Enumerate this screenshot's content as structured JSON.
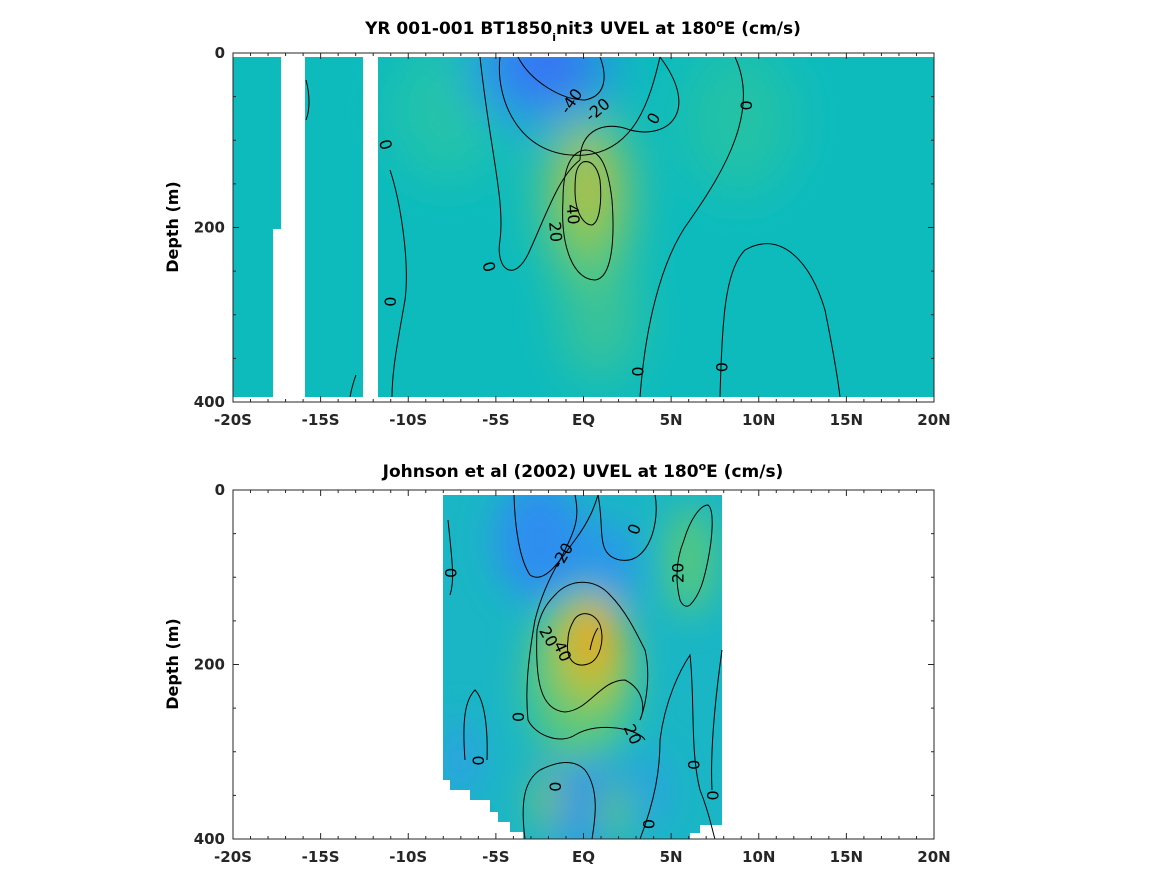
{
  "chart_data": [
    {
      "type": "heatmap",
      "title_pre": "YR 001-001 BT1850",
      "title_sub": "i",
      "title_mid": "nit3 UVEL at 180",
      "title_sup": "o",
      "title_post": "E (cm/s)",
      "xlabel": "",
      "ylabel": "Depth (m)",
      "xlim": [
        -20,
        20
      ],
      "ylim": [
        0,
        400
      ],
      "y_reversed": true,
      "x_ticks": [
        -20,
        -15,
        -10,
        -5,
        0,
        5,
        10,
        15,
        20
      ],
      "x_tick_labels": [
        "-20S",
        "-15S",
        "-10S",
        "-5S",
        "EQ",
        "5N",
        "10N",
        "15N",
        "20N"
      ],
      "y_ticks": [
        0,
        200,
        400
      ],
      "y_tick_labels": [
        "0",
        "200",
        "400"
      ],
      "data_x_range": [
        -20,
        20
      ],
      "missing_x_bands": [
        [
          -17.7,
          -16.0
        ],
        [
          -12.5,
          -11.6
        ]
      ],
      "cores": [
        {
          "lat": -1.5,
          "depth": 30,
          "value": -45
        },
        {
          "lat": 0.0,
          "depth": 180,
          "value": 45
        },
        {
          "lat": -7.0,
          "depth": 50,
          "value": 8
        },
        {
          "lat": 8.0,
          "depth": 80,
          "value": 6
        }
      ],
      "contour_labels": [
        {
          "text": "-40",
          "lat": -0.7,
          "depth": 55,
          "angle": -55
        },
        {
          "text": "-20",
          "lat": 0.8,
          "depth": 65,
          "angle": -40
        },
        {
          "text": "0",
          "lat": 4.0,
          "depth": 75,
          "angle": -60
        },
        {
          "text": "0",
          "lat": 9.3,
          "depth": 60,
          "angle": -90
        },
        {
          "text": "0",
          "lat": -11.3,
          "depth": 105,
          "angle": 75
        },
        {
          "text": "40",
          "lat": -0.6,
          "depth": 185,
          "angle": 85
        },
        {
          "text": "20",
          "lat": -1.6,
          "depth": 205,
          "angle": 85
        },
        {
          "text": "0",
          "lat": -5.4,
          "depth": 245,
          "angle": 75
        },
        {
          "text": "0",
          "lat": -11.0,
          "depth": 285,
          "angle": -90
        },
        {
          "text": "0",
          "lat": 3.1,
          "depth": 365,
          "angle": -90
        },
        {
          "text": "0",
          "lat": 7.9,
          "depth": 360,
          "angle": -90
        }
      ]
    },
    {
      "type": "heatmap",
      "title_pre": "Johnson et al (2002) UVEL at 180",
      "title_sup": "o",
      "title_post": "E (cm/s)",
      "xlabel": "",
      "ylabel": "Depth (m)",
      "xlim": [
        -20,
        20
      ],
      "ylim": [
        0,
        400
      ],
      "y_reversed": true,
      "x_ticks": [
        -20,
        -15,
        -10,
        -5,
        0,
        5,
        10,
        15,
        20
      ],
      "x_tick_labels": [
        "-20S",
        "-15S",
        "-10S",
        "-5S",
        "EQ",
        "5N",
        "10N",
        "15N",
        "20N"
      ],
      "y_ticks": [
        0,
        200,
        400
      ],
      "y_tick_labels": [
        "0",
        "200",
        "400"
      ],
      "data_x_range": [
        -8,
        8
      ],
      "cores": [
        {
          "lat": -1.0,
          "depth": 50,
          "value": -30
        },
        {
          "lat": 0.5,
          "depth": 170,
          "value": 50
        },
        {
          "lat": 6.0,
          "depth": 90,
          "value": 20
        },
        {
          "lat": 1.0,
          "depth": 330,
          "value": -20
        },
        {
          "lat": 4.0,
          "depth": 330,
          "value": -12
        },
        {
          "lat": -6.5,
          "depth": 330,
          "value": -10
        }
      ],
      "contour_labels": [
        {
          "text": "0",
          "lat": 2.9,
          "depth": 45,
          "angle": -70
        },
        {
          "text": "-20",
          "lat": -1.2,
          "depth": 75,
          "angle": -60
        },
        {
          "text": "20",
          "lat": 5.4,
          "depth": 95,
          "angle": -90
        },
        {
          "text": "0",
          "lat": -7.6,
          "depth": 95,
          "angle": 90
        },
        {
          "text": "20",
          "lat": -2.0,
          "depth": 168,
          "angle": 60
        },
        {
          "text": "40",
          "lat": -1.2,
          "depth": 185,
          "angle": 65
        },
        {
          "text": "0",
          "lat": -3.7,
          "depth": 260,
          "angle": -90
        },
        {
          "text": "20",
          "lat": 2.8,
          "depth": 280,
          "angle": 65
        },
        {
          "text": "0",
          "lat": -6.0,
          "depth": 310,
          "angle": -90
        },
        {
          "text": "0",
          "lat": -1.6,
          "depth": 340,
          "angle": -90
        },
        {
          "text": "0",
          "lat": 6.3,
          "depth": 315,
          "angle": -90
        },
        {
          "text": "0",
          "lat": 7.4,
          "depth": 350,
          "angle": -90
        },
        {
          "text": "0",
          "lat": 3.7,
          "depth": 383,
          "angle": 90
        }
      ]
    }
  ]
}
